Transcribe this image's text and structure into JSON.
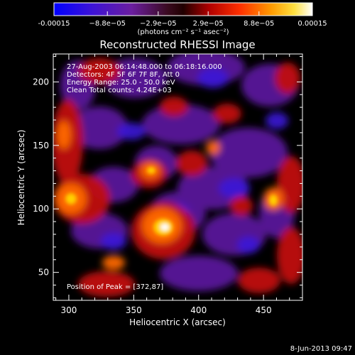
{
  "colorbar": {
    "tick_labels": [
      "-0.00015",
      "−8.8e−05",
      "−2.9e−05",
      "2.9e−05",
      "8.8e−05",
      "0.00015"
    ],
    "tick_values": [
      -0.00015,
      -8.8e-05,
      -2.9e-05,
      2.9e-05,
      8.8e-05,
      0.00015
    ],
    "range": [
      -0.00015,
      0.00015
    ],
    "units": "(photons cm⁻² s⁻¹ asec⁻²)",
    "colors": [
      "#0000ff",
      "#4a0ec8",
      "#6b1ea0",
      "#3a0a10",
      "#c00000",
      "#ff6a00",
      "#ffd000",
      "#ffffff"
    ]
  },
  "plot": {
    "title": "Reconstructed RHESSI Image",
    "xlabel": "Heliocentric X (arcsec)",
    "ylabel": "Heliocentric Y (arcsec)",
    "x_ticks": [
      "300",
      "350",
      "400",
      "450"
    ],
    "y_ticks": [
      "50",
      "100",
      "150",
      "200"
    ],
    "xlim": [
      288,
      480
    ],
    "ylim": [
      28,
      222
    ],
    "info_lines": [
      "27-Aug-2003 06:14:48.000 to 06:18:16.000",
      "Detectors: 4F 5F 6F 7F 8F, Att 0",
      "Energy Range: 25.0 - 50.0 keV",
      "Clean     Total counts: 4.24E+03"
    ],
    "peak_label": "Position of Peak = [372,87]",
    "peak": [
      372,
      87
    ]
  },
  "footer": {
    "date": "8-Jun-2013 09:47"
  }
}
